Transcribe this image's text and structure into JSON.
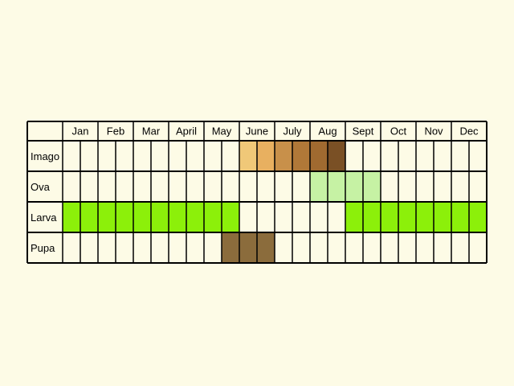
{
  "chart_data": {
    "type": "table",
    "months": [
      "Jan",
      "Feb",
      "Mar",
      "April",
      "May",
      "June",
      "July",
      "Aug",
      "Sept",
      "Oct",
      "Nov",
      "Dec"
    ],
    "stages": [
      {
        "label": "Imago",
        "color": "#e0a64a",
        "active_half_months": [
          {
            "from": 10,
            "to": 15,
            "shade": "gradient"
          }
        ]
      },
      {
        "label": "Ova",
        "color": "#c6f2a4",
        "active_half_months": [
          {
            "from": 14,
            "to": 17
          }
        ]
      },
      {
        "label": "Larva",
        "color": "#8cf00a",
        "active_half_months": [
          {
            "from": 0,
            "to": 9
          },
          {
            "from": 16,
            "to": 23
          }
        ]
      },
      {
        "label": "Pupa",
        "color": "#8b6c3c",
        "active_half_months": [
          {
            "from": 9,
            "to": 11
          }
        ]
      }
    ],
    "imago_shades": [
      "#f0c878",
      "#e8b060",
      "#c8904a",
      "#b07838",
      "#a06a30",
      "#7a5025",
      "#a86e35",
      "#c08848",
      "#e6ae5e",
      "#f2c87a",
      "#f4cf85"
    ],
    "colors": {
      "background": "#fdfbe6",
      "grid": "#000000"
    }
  }
}
